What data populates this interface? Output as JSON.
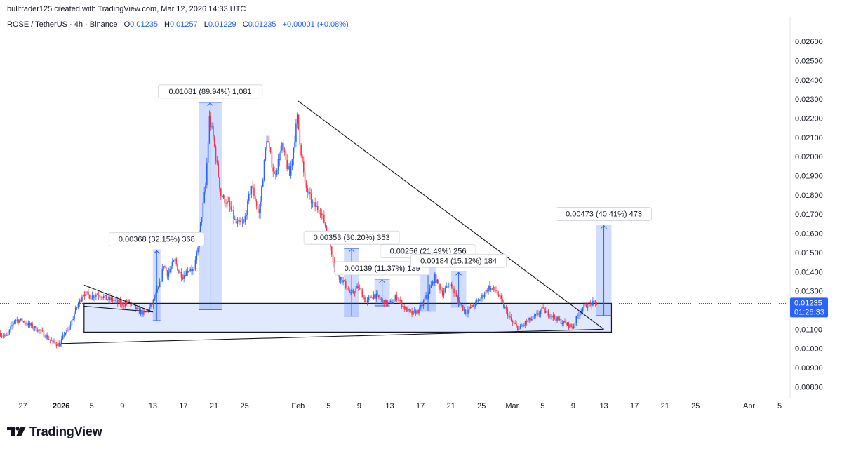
{
  "header": {
    "credit": "bulltrader125 created with TradingView.com, Mar 12, 2026 14:33 UTC"
  },
  "legend": {
    "symbol": "ROSE / TetherUS · 4h · Binance",
    "open_label": "O",
    "open": "0.01235",
    "high_label": "H",
    "high": "0.01257",
    "low_label": "L",
    "low": "0.01229",
    "close_label": "C",
    "close": "0.01235",
    "change": "+0.00001 (+0.08%)"
  },
  "price_tag": {
    "price": "0.01235",
    "countdown": "01:26:33",
    "color": "#2962ff"
  },
  "logo": {
    "text": "TradingView"
  },
  "colors": {
    "up": "#2962ff",
    "down": "#f23645",
    "range_fill": "#2962ff",
    "line": "#131722",
    "axis_text": "#131722"
  },
  "chart_data": {
    "type": "candlestick",
    "symbol": "ROSE / TetherUS",
    "interval": "4h",
    "exchange": "Binance",
    "ylim": [
      0.0075,
      0.0267
    ],
    "y_ticks": [
      "0.02600",
      "0.02500",
      "0.02400",
      "0.02300",
      "0.02200",
      "0.02100",
      "0.02000",
      "0.01900",
      "0.01800",
      "0.01700",
      "0.01600",
      "0.01500",
      "0.01400",
      "0.01300",
      "0.01200",
      "0.01100",
      "0.01000",
      "0.00900",
      "0.00800"
    ],
    "xlim": [
      "2025-12-24",
      "2026-04-06"
    ],
    "x_ticks": [
      {
        "label": "27",
        "date": "2025-12-27"
      },
      {
        "label": "2026",
        "date": "2026-01-01",
        "bold": true
      },
      {
        "label": "5",
        "date": "2026-01-05"
      },
      {
        "label": "9",
        "date": "2026-01-09"
      },
      {
        "label": "13",
        "date": "2026-01-13"
      },
      {
        "label": "17",
        "date": "2026-01-17"
      },
      {
        "label": "21",
        "date": "2026-01-21"
      },
      {
        "label": "25",
        "date": "2026-01-25"
      },
      {
        "label": "Feb",
        "date": "2026-02-01"
      },
      {
        "label": "5",
        "date": "2026-02-05"
      },
      {
        "label": "9",
        "date": "2026-02-09"
      },
      {
        "label": "13",
        "date": "2026-02-13"
      },
      {
        "label": "17",
        "date": "2026-02-17"
      },
      {
        "label": "21",
        "date": "2026-02-21"
      },
      {
        "label": "25",
        "date": "2026-02-25"
      },
      {
        "label": "Mar",
        "date": "2026-03-01"
      },
      {
        "label": "5",
        "date": "2026-03-05"
      },
      {
        "label": "9",
        "date": "2026-03-09"
      },
      {
        "label": "13",
        "date": "2026-03-13"
      },
      {
        "label": "17",
        "date": "2026-03-17"
      },
      {
        "label": "21",
        "date": "2026-03-21"
      },
      {
        "label": "25",
        "date": "2026-03-25"
      },
      {
        "label": "Apr",
        "date": "2026-04-01"
      },
      {
        "label": "5",
        "date": "2026-04-05"
      }
    ],
    "price_path": [
      [
        "2025-12-24",
        0.0108
      ],
      [
        "2025-12-25",
        0.0106
      ],
      [
        "2025-12-26",
        0.0115
      ],
      [
        "2025-12-27",
        0.01145
      ],
      [
        "2025-12-28",
        0.0112
      ],
      [
        "2025-12-29",
        0.011
      ],
      [
        "2025-12-30",
        0.0107
      ],
      [
        "2025-12-31",
        0.0103
      ],
      [
        "2026-01-01",
        0.0102
      ],
      [
        "2026-01-01T12",
        0.0108
      ],
      [
        "2026-01-02",
        0.0109
      ],
      [
        "2026-01-03",
        0.012
      ],
      [
        "2026-01-04",
        0.0129
      ],
      [
        "2026-01-05",
        0.0127
      ],
      [
        "2026-01-06",
        0.01285
      ],
      [
        "2026-01-07",
        0.0126
      ],
      [
        "2026-01-08",
        0.0125
      ],
      [
        "2026-01-09",
        0.0123
      ],
      [
        "2026-01-10",
        0.0124
      ],
      [
        "2026-01-11",
        0.012
      ],
      [
        "2026-01-12",
        0.0118
      ],
      [
        "2026-01-13",
        0.0123
      ],
      [
        "2026-01-14",
        0.0133
      ],
      [
        "2026-01-14T12",
        0.0144
      ],
      [
        "2026-01-15",
        0.0139
      ],
      [
        "2026-01-16",
        0.0146
      ],
      [
        "2026-01-16T12",
        0.014
      ],
      [
        "2026-01-17",
        0.0138
      ],
      [
        "2026-01-18",
        0.0142
      ],
      [
        "2026-01-18T12",
        0.014
      ],
      [
        "2026-01-19",
        0.0154
      ],
      [
        "2026-01-20",
        0.0185
      ],
      [
        "2026-01-20T12",
        0.022
      ],
      [
        "2026-01-21",
        0.021
      ],
      [
        "2026-01-22",
        0.018
      ],
      [
        "2026-01-23",
        0.0175
      ],
      [
        "2026-01-24",
        0.0165
      ],
      [
        "2026-01-25",
        0.0165
      ],
      [
        "2026-01-26",
        0.0185
      ],
      [
        "2026-01-27",
        0.017
      ],
      [
        "2026-01-28",
        0.021
      ],
      [
        "2026-01-29",
        0.019
      ],
      [
        "2026-01-30",
        0.0205
      ],
      [
        "2026-01-31",
        0.019
      ],
      [
        "2026-02-01",
        0.022
      ],
      [
        "2026-02-02",
        0.0185
      ],
      [
        "2026-02-03",
        0.0175
      ],
      [
        "2026-02-04",
        0.0172
      ],
      [
        "2026-02-05",
        0.016
      ],
      [
        "2026-02-06",
        0.014
      ],
      [
        "2026-02-07",
        0.0135
      ],
      [
        "2026-02-08",
        0.0128
      ],
      [
        "2026-02-09",
        0.0132
      ],
      [
        "2026-02-10",
        0.0124
      ],
      [
        "2026-02-11",
        0.0128
      ],
      [
        "2026-02-12",
        0.0125
      ],
      [
        "2026-02-13",
        0.0123
      ],
      [
        "2026-02-14",
        0.0127
      ],
      [
        "2026-02-15",
        0.0121
      ],
      [
        "2026-02-16",
        0.0118
      ],
      [
        "2026-02-17",
        0.012
      ],
      [
        "2026-02-18",
        0.0128
      ],
      [
        "2026-02-19",
        0.0137
      ],
      [
        "2026-02-20",
        0.0129
      ],
      [
        "2026-02-21",
        0.0134
      ],
      [
        "2026-02-22",
        0.0125
      ],
      [
        "2026-02-23",
        0.0119
      ],
      [
        "2026-02-24",
        0.0122
      ],
      [
        "2026-02-25",
        0.0126
      ],
      [
        "2026-02-26",
        0.0132
      ],
      [
        "2026-02-27",
        0.013
      ],
      [
        "2026-02-28",
        0.0122
      ],
      [
        "2026-03-01",
        0.0114
      ],
      [
        "2026-03-02",
        0.011
      ],
      [
        "2026-03-03",
        0.0114
      ],
      [
        "2026-03-04",
        0.0116
      ],
      [
        "2026-03-05",
        0.012
      ],
      [
        "2026-03-06",
        0.0118
      ],
      [
        "2026-03-07",
        0.0115
      ],
      [
        "2026-03-08",
        0.0113
      ],
      [
        "2026-03-09",
        0.0111
      ],
      [
        "2026-03-10",
        0.012
      ],
      [
        "2026-03-11",
        0.0123
      ],
      [
        "2026-03-12",
        0.01235
      ]
    ],
    "support_zone": {
      "from": "2026-01-04",
      "to": "2026-03-14",
      "low": 0.01085,
      "high": 0.01235
    },
    "trendlines": [
      {
        "name": "descending-resistance",
        "from": [
          "2026-02-01",
          0.0229
        ],
        "to": [
          "2026-03-13",
          0.011
        ]
      },
      {
        "name": "ascending-support",
        "from": [
          "2026-01-01",
          0.01025
        ],
        "to": [
          "2026-03-13",
          0.011
        ]
      },
      {
        "name": "wedge-top",
        "from": [
          "2026-01-04",
          0.0133
        ],
        "to": [
          "2026-01-13",
          0.0119
        ]
      },
      {
        "name": "wedge-bottom",
        "from": [
          "2026-01-04",
          0.0122
        ],
        "to": [
          "2026-01-13",
          0.0119
        ]
      }
    ],
    "measurements": [
      {
        "label": "0.00368 (32.15%) 368",
        "from": "2026-01-13",
        "to": "2026-01-14",
        "low": 0.01145,
        "high": 0.01513
      },
      {
        "label": "0.01081 (89.94%) 1,081",
        "from": "2026-01-19",
        "to": "2026-01-22",
        "low": 0.01202,
        "high": 0.02283
      },
      {
        "label": "0.00353 (30.20%) 353",
        "from": "2026-02-07",
        "to": "2026-02-09",
        "low": 0.01168,
        "high": 0.01521
      },
      {
        "label": "0.00139 (11.37%) 139",
        "from": "2026-02-11",
        "to": "2026-02-13",
        "low": 0.01222,
        "high": 0.01361
      },
      {
        "label": "0.00256 (21.49%) 256",
        "from": "2026-02-17",
        "to": "2026-02-19",
        "low": 0.01194,
        "high": 0.0145
      },
      {
        "label": "0.00184 (15.12%) 184",
        "from": "2026-02-21",
        "to": "2026-02-23",
        "low": 0.01216,
        "high": 0.014
      },
      {
        "label": "0.00473 (40.41%) 473",
        "from": "2026-03-12",
        "to": "2026-03-14",
        "low": 0.01171,
        "high": 0.01644
      }
    ]
  }
}
